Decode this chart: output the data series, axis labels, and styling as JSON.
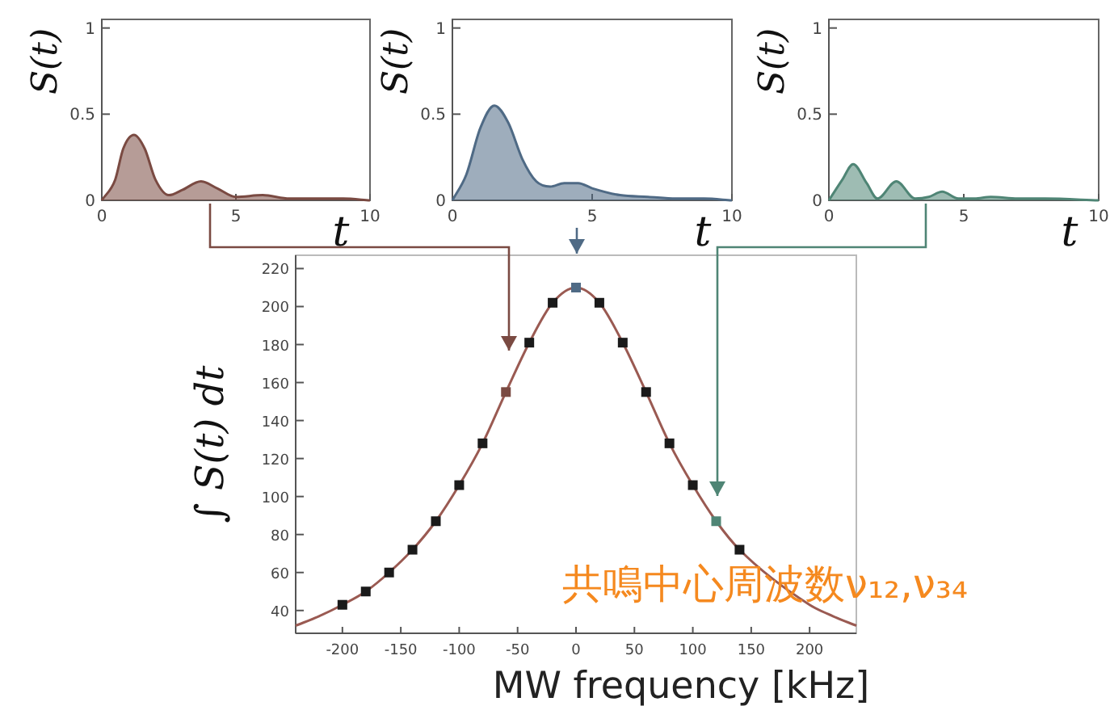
{
  "chart_data": [
    {
      "type": "area",
      "xlabel": "t",
      "ylabel": "S(t)",
      "xlim": [
        0,
        10
      ],
      "ylim": [
        0,
        1.05
      ],
      "xticks": [
        0,
        5,
        10
      ],
      "yticks": [
        0,
        0.5,
        1
      ],
      "x": [
        0,
        0.5,
        0.8,
        1.2,
        1.6,
        2.0,
        2.5,
        3.0,
        3.7,
        4.3,
        5.0,
        6.0,
        7.0,
        8.0,
        9.0,
        10
      ],
      "series": [
        {
          "color": "#7a4a42",
          "values": [
            0,
            0.12,
            0.3,
            0.38,
            0.3,
            0.12,
            0.03,
            0.06,
            0.11,
            0.07,
            0.02,
            0.03,
            0.01,
            0.01,
            0.01,
            0
          ]
        }
      ]
    },
    {
      "type": "area",
      "xlabel": "t",
      "ylabel": "S(t)",
      "xlim": [
        0,
        10
      ],
      "ylim": [
        0,
        1.05
      ],
      "xticks": [
        0,
        5,
        10
      ],
      "yticks": [
        0,
        0.5,
        1
      ],
      "x": [
        0,
        0.5,
        1.0,
        1.5,
        2.0,
        2.5,
        3.0,
        3.5,
        4.0,
        4.5,
        5.0,
        6.0,
        7.0,
        8.0,
        9.0,
        10
      ],
      "series": [
        {
          "color": "#4f6a85",
          "values": [
            0,
            0.15,
            0.42,
            0.55,
            0.45,
            0.24,
            0.11,
            0.08,
            0.1,
            0.1,
            0.07,
            0.03,
            0.02,
            0.01,
            0.01,
            0
          ]
        }
      ]
    },
    {
      "type": "area",
      "xlabel": "t",
      "ylabel": "S(t)",
      "xlim": [
        0,
        10
      ],
      "ylim": [
        0,
        1.05
      ],
      "xticks": [
        0,
        5,
        10
      ],
      "yticks": [
        0,
        0.5,
        1
      ],
      "x": [
        0,
        0.5,
        0.9,
        1.4,
        1.8,
        2.5,
        3.2,
        3.7,
        4.2,
        4.8,
        5.4,
        6.0,
        7.0,
        8.0,
        10
      ],
      "series": [
        {
          "color": "#4f8575",
          "values": [
            0,
            0.12,
            0.21,
            0.1,
            0.01,
            0.11,
            0.01,
            0.02,
            0.05,
            0.01,
            0.01,
            0.02,
            0.01,
            0.01,
            0
          ]
        }
      ]
    },
    {
      "type": "scatter",
      "xlabel": "MW frequency [kHz]",
      "ylabel": "∫ S(t) dt",
      "xlim": [
        -240,
        240
      ],
      "ylim": [
        28,
        227
      ],
      "xticks": [
        -200,
        -150,
        -100,
        -50,
        0,
        50,
        100,
        150,
        200
      ],
      "yticks": [
        40,
        60,
        80,
        100,
        120,
        140,
        160,
        180,
        200,
        220
      ],
      "annotations": [
        "共鳴中心周波数ν₁₂,ν₃₄"
      ],
      "series": [
        {
          "type": "line",
          "color": "#9a5a52",
          "x": [
            -240,
            -220,
            -200,
            -180,
            -160,
            -140,
            -120,
            -100,
            -80,
            -60,
            -40,
            -20,
            0,
            20,
            40,
            60,
            80,
            100,
            120,
            140,
            200,
            220,
            240
          ],
          "values": [
            32,
            37,
            43,
            50,
            60,
            72,
            87,
            106,
            128,
            155,
            181,
            202,
            210,
            202,
            181,
            155,
            128,
            106,
            87,
            72,
            43,
            37,
            32
          ]
        },
        {
          "marker": "square",
          "x": [
            -200,
            -180,
            -160,
            -140,
            -120,
            -100,
            -80,
            -60,
            -40,
            -20,
            0,
            20,
            40,
            60,
            80,
            100,
            120,
            140
          ],
          "values": [
            43,
            50,
            60,
            72,
            87,
            106,
            128,
            155,
            181,
            202,
            210,
            202,
            181,
            155,
            128,
            106,
            87,
            72
          ],
          "colors": [
            "#1a1a1a",
            "#1a1a1a",
            "#1a1a1a",
            "#1a1a1a",
            "#1a1a1a",
            "#1a1a1a",
            "#1a1a1a",
            "#7a4a42",
            "#1a1a1a",
            "#1a1a1a",
            "#4f6a85",
            "#1a1a1a",
            "#1a1a1a",
            "#1a1a1a",
            "#1a1a1a",
            "#1a1a1a",
            "#4f8575",
            "#1a1a1a"
          ]
        }
      ]
    }
  ]
}
